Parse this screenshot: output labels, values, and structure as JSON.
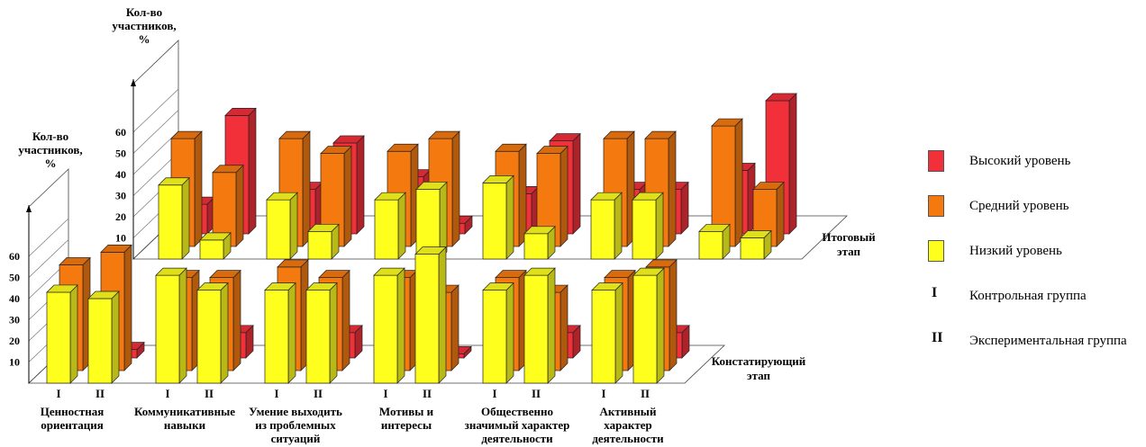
{
  "colors": {
    "high": "#f2303a",
    "mid": "#f47a10",
    "low": "#ffff1e"
  },
  "legend": [
    {
      "kind": "swatch",
      "color_key": "high",
      "label": "Высокий уровень"
    },
    {
      "kind": "swatch",
      "color_key": "mid",
      "label": "Средний уровень"
    },
    {
      "kind": "swatch",
      "color_key": "low",
      "label": "Низкий уровень"
    },
    {
      "kind": "roman",
      "symbol": "I",
      "label": "Контрольная группа"
    },
    {
      "kind": "roman",
      "symbol": "II",
      "label": "Экспериментальная группа"
    }
  ],
  "chart_data": [
    {
      "type": "bar",
      "stage": "Констатирующий этап",
      "ylabel": "Кол-во участников, %",
      "yticks": [
        10,
        20,
        30,
        40,
        50,
        60
      ],
      "ylim": [
        0,
        60
      ],
      "categories": [
        "Ценностная ориентация",
        "Коммуникативные навыки",
        "Умение выходить из проблемных ситуаций",
        "Мотивы и интересы",
        "Общественно значимый характер деятельности",
        "Активный характер деятельности"
      ],
      "groups": [
        "I",
        "II"
      ],
      "series": [
        {
          "name": "Низкий уровень",
          "values": [
            [
              43,
              40
            ],
            [
              51,
              44
            ],
            [
              44,
              44
            ],
            [
              51,
              61
            ],
            [
              44,
              51
            ],
            [
              44,
              51
            ]
          ]
        },
        {
          "name": "Средний уровень",
          "values": [
            [
              50,
              56
            ],
            [
              44,
              44
            ],
            [
              49,
              44
            ],
            [
              44,
              37
            ],
            [
              44,
              37
            ],
            [
              44,
              49
            ]
          ]
        },
        {
          "name": "Высокий уровень",
          "values": [
            [
              7,
              4
            ],
            [
              5,
              12
            ],
            [
              7,
              12
            ],
            [
              5,
              2
            ],
            [
              12,
              12
            ],
            [
              12,
              12
            ]
          ]
        }
      ]
    },
    {
      "type": "bar",
      "stage": "Итоговый этап",
      "ylabel": "Кол-во участников, %",
      "yticks": [
        10,
        20,
        30,
        40,
        50,
        60
      ],
      "ylim": [
        0,
        60
      ],
      "categories": [
        "Ценностная ориентация",
        "Коммуникативные навыки",
        "Умение выходить из проблемных ситуаций",
        "Мотивы и интересы",
        "Общественно значимый характер деятельности",
        "Активный характер деятельности"
      ],
      "groups": [
        "I",
        "II"
      ],
      "series": [
        {
          "name": "Низкий уровень",
          "values": [
            [
              35,
              9
            ],
            [
              28,
              13
            ],
            [
              28,
              33
            ],
            [
              36,
              12
            ],
            [
              28,
              28
            ],
            [
              13,
              10
            ]
          ]
        },
        {
          "name": "Средний уровень",
          "values": [
            [
              51,
              35
            ],
            [
              51,
              44
            ],
            [
              45,
              51
            ],
            [
              45,
              44
            ],
            [
              51,
              51
            ],
            [
              57,
              27
            ]
          ]
        },
        {
          "name": "Высокий уровень",
          "values": [
            [
              14,
              56
            ],
            [
              21,
              43
            ],
            [
              27,
              5
            ],
            [
              19,
              44
            ],
            [
              21,
              21
            ],
            [
              30,
              63
            ]
          ]
        }
      ]
    }
  ]
}
